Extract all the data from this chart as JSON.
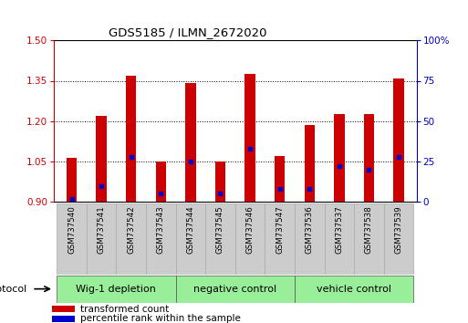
{
  "title": "GDS5185 / ILMN_2672020",
  "samples": [
    "GSM737540",
    "GSM737541",
    "GSM737542",
    "GSM737543",
    "GSM737544",
    "GSM737545",
    "GSM737546",
    "GSM737547",
    "GSM737536",
    "GSM737537",
    "GSM737538",
    "GSM737539"
  ],
  "bar_values": [
    1.065,
    1.22,
    1.37,
    1.05,
    1.34,
    1.05,
    1.375,
    1.07,
    1.185,
    1.225,
    1.225,
    1.36
  ],
  "percentile_values": [
    2,
    10,
    28,
    5,
    25,
    5,
    33,
    8,
    8,
    22,
    20,
    28
  ],
  "bar_base": 0.9,
  "ylim_left": [
    0.9,
    1.5
  ],
  "ylim_right": [
    0,
    100
  ],
  "yticks_left": [
    0.9,
    1.05,
    1.2,
    1.35,
    1.5
  ],
  "yticks_right": [
    0,
    25,
    50,
    75,
    100
  ],
  "ytick_labels_right": [
    "0",
    "25",
    "50",
    "75",
    "100%"
  ],
  "bar_color": "#cc0000",
  "marker_color": "#0000cc",
  "groups": [
    {
      "label": "Wig-1 depletion",
      "start": 0,
      "end": 4
    },
    {
      "label": "negative control",
      "start": 4,
      "end": 8
    },
    {
      "label": "vehicle control",
      "start": 8,
      "end": 12
    }
  ],
  "group_bg_color": "#99ee99",
  "group_border_colors": [
    "#ccffcc",
    "#aaddaa",
    "#88cc88"
  ],
  "sample_bg_color": "#cccccc",
  "protocol_label": "protocol",
  "legend_items": [
    {
      "label": "transformed count",
      "color": "#cc0000"
    },
    {
      "label": "percentile rank within the sample",
      "color": "#0000cc"
    }
  ],
  "bar_color_left_axis": "#cc0000",
  "right_axis_color": "#0000bb",
  "bar_width": 0.35
}
